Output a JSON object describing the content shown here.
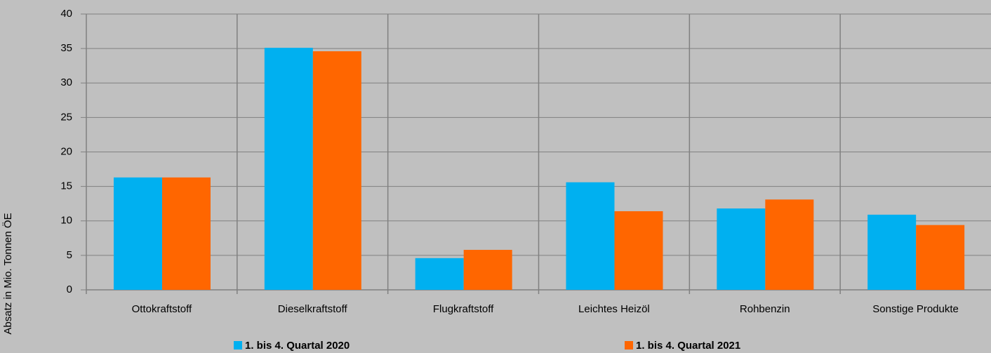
{
  "chart_data": {
    "type": "bar",
    "y_label": "Absatz in Mio. Tonnen ÖE",
    "categories": [
      "Ottokraftstoff",
      "Dieselkraftstoff",
      "Flugkraftstoff",
      "Leichtes Heizöl",
      "Rohbenzin",
      "Sonstige Produkte"
    ],
    "series": [
      {
        "name": "1. bis 4. Quartal 2020",
        "color": "#00b0f0",
        "values": [
          16.3,
          35.1,
          4.6,
          15.6,
          11.8,
          10.9
        ]
      },
      {
        "name": "1. bis 4. Quartal 2021",
        "color": "#ff6600",
        "values": [
          16.3,
          34.6,
          5.8,
          11.4,
          13.1,
          9.4
        ]
      }
    ],
    "ylim": [
      0,
      40
    ],
    "yticks": [
      0,
      5,
      10,
      15,
      20,
      25,
      30,
      35,
      40
    ],
    "grid": true
  }
}
